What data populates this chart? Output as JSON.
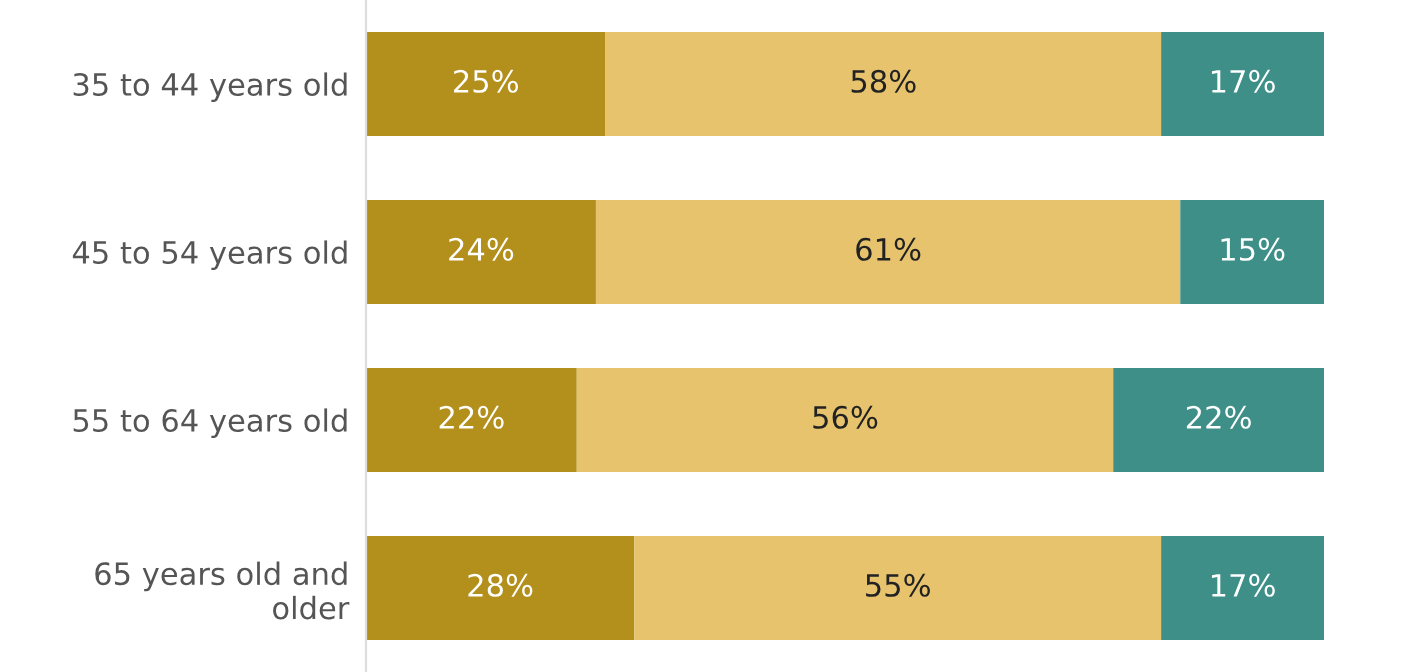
{
  "chart_data": {
    "type": "bar",
    "orientation": "horizontal",
    "stacked": true,
    "categories": [
      "35 to 44 years old",
      "45 to 54 years old",
      "55 to 64 years old",
      "65 years old and\nolder"
    ],
    "series": [
      {
        "color": "#b38f1c",
        "values": [
          25,
          24,
          22,
          28
        ],
        "value_labels": [
          "25%",
          "24%",
          "22%",
          "28%"
        ]
      },
      {
        "color": "#e6c36c",
        "values": [
          58,
          61,
          56,
          55
        ],
        "value_labels": [
          "58%",
          "61%",
          "56%",
          "55%"
        ]
      },
      {
        "color": "#3e8f88",
        "values": [
          17,
          15,
          22,
          17
        ],
        "value_labels": [
          "17%",
          "15%",
          "22%",
          "17%"
        ]
      }
    ]
  }
}
